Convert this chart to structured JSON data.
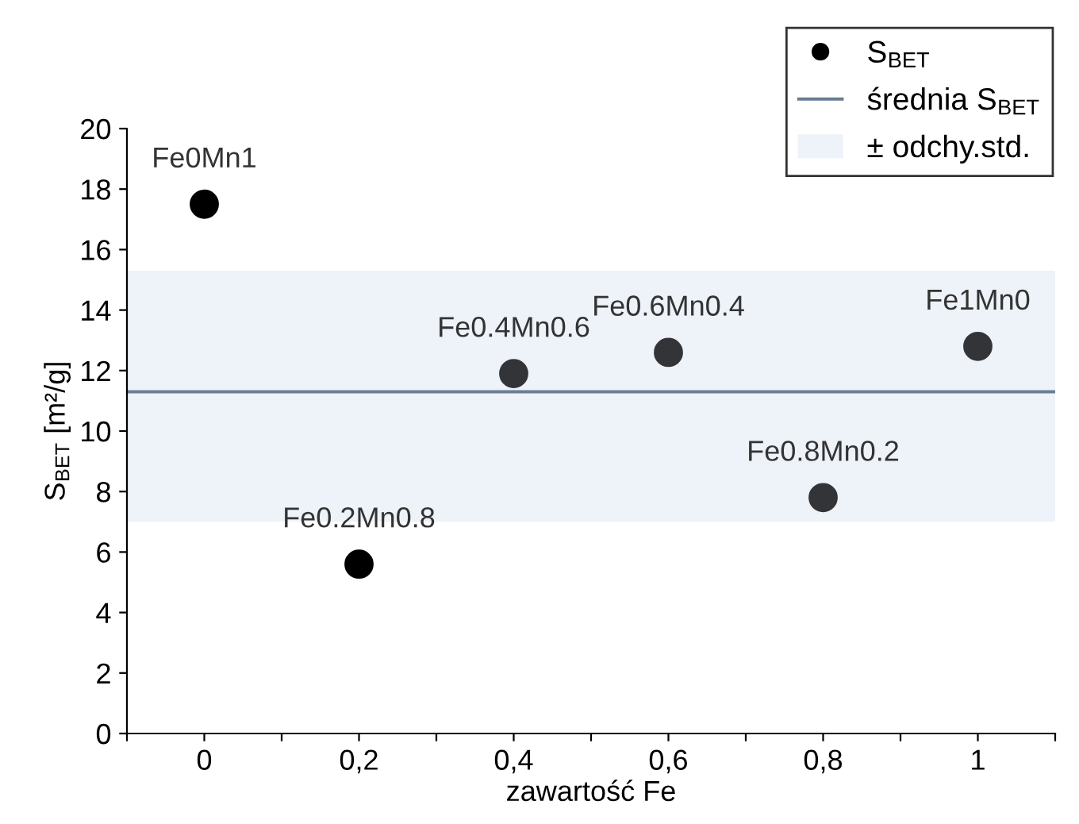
{
  "chart_data": {
    "type": "scatter",
    "xlabel": "zawartość Fe",
    "ylabel": "S$_{BET}$ [m²/g]",
    "x": [
      0,
      0.2,
      0.4,
      0.6,
      0.8,
      1
    ],
    "series": [
      {
        "name": "S$_{BET}$",
        "color": "#000000",
        "colors": [
          "#000000",
          "#000000",
          "#333438",
          "#333438",
          "#333438",
          "#333438"
        ],
        "values": [
          17.5,
          5.6,
          11.9,
          12.6,
          7.8,
          12.8
        ]
      }
    ],
    "xlim": [
      -0.1,
      1.1
    ],
    "xticks": [
      {
        "value": -0.1,
        "label": null
      },
      {
        "value": 0,
        "label": "0"
      },
      {
        "value": 0.1,
        "label": null
      },
      {
        "value": 0.2,
        "label": "0,2"
      },
      {
        "value": 0.3,
        "label": null
      },
      {
        "value": 0.4,
        "label": "0,4"
      },
      {
        "value": 0.5,
        "label": null
      },
      {
        "value": 0.6,
        "label": "0,6"
      },
      {
        "value": 0.7,
        "label": null
      },
      {
        "value": 0.8,
        "label": "0,8"
      },
      {
        "value": 0.9,
        "label": null
      },
      {
        "value": 1,
        "label": "1"
      },
      {
        "value": 1.1,
        "label": null
      }
    ],
    "ylim": [
      0,
      20
    ],
    "yticks": [
      0,
      2,
      4,
      6,
      8,
      10,
      12,
      14,
      16,
      18,
      20
    ],
    "ref_lines": [
      {
        "axis": "y",
        "value": 11.3,
        "label": "średnia S$_{BET}$",
        "color": "#6a7d93",
        "line_style": "solid"
      }
    ],
    "bands": [
      {
        "axis": "y",
        "from": 7.0,
        "to": 15.3,
        "label": "± odchy.std.",
        "color": "#eef2f9"
      }
    ],
    "annotations": [
      {
        "text": "Fe0Mn1",
        "x": 0,
        "y": 17.5
      },
      {
        "text": "Fe0.2Mn0.8",
        "x": 0.2,
        "y": 5.6
      },
      {
        "text": "Fe0.4Mn0.6",
        "x": 0.4,
        "y": 11.9
      },
      {
        "text": "Fe0.6Mn0.4",
        "x": 0.6,
        "y": 12.6
      },
      {
        "text": "Fe0.8Mn0.2",
        "x": 0.8,
        "y": 7.8
      },
      {
        "text": "Fe1Mn0",
        "x": 1,
        "y": 12.8
      }
    ],
    "marker": "circle",
    "grid": false,
    "legend": "top right"
  }
}
